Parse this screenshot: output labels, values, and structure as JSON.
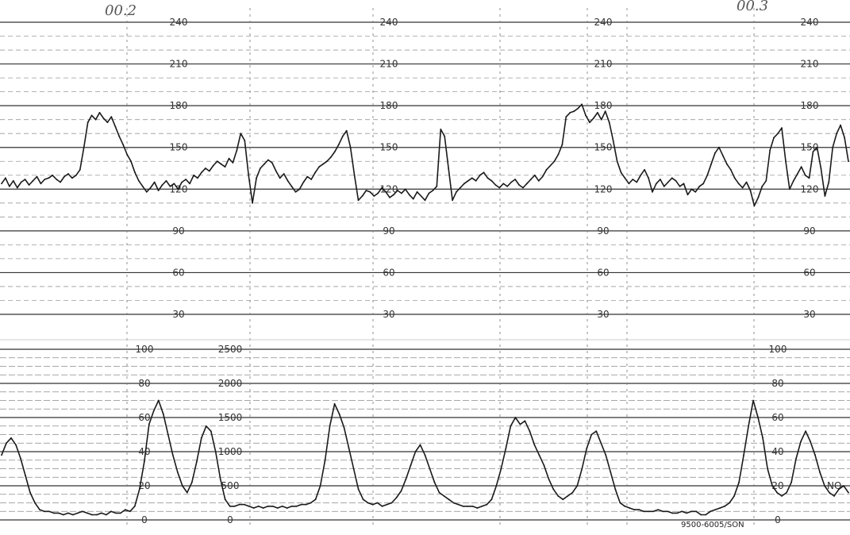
{
  "chart_data": [
    {
      "type": "line",
      "title": "",
      "xlabel": "",
      "ylabel": "",
      "ylim": [
        30,
        240
      ],
      "grid": true,
      "ticks": [
        "240",
        "210",
        "180",
        "150",
        "120",
        "90",
        "60",
        "30"
      ],
      "tick_values": [
        240,
        210,
        180,
        150,
        120,
        90,
        60,
        30
      ],
      "annotations": [
        "00.2",
        "00.3"
      ],
      "series": [
        {
          "values": [
            124,
            128,
            122,
            126,
            121,
            125,
            127,
            123,
            126,
            129,
            124,
            127,
            128,
            130,
            127,
            125,
            129,
            131,
            128,
            130,
            134,
            150,
            168,
            173,
            170,
            175,
            171,
            168,
            172,
            165,
            158,
            152,
            145,
            140,
            132,
            126,
            122,
            118,
            121,
            125,
            119,
            123,
            126,
            122,
            124,
            120,
            125,
            127,
            124,
            130,
            128,
            132,
            135,
            133,
            137,
            140,
            138,
            136,
            142,
            139,
            148,
            160,
            155,
            130,
            110,
            128,
            135,
            138,
            141,
            139,
            133,
            128,
            131,
            126,
            122,
            118,
            120,
            125,
            129,
            127,
            132,
            136,
            138,
            140,
            143,
            147,
            152,
            158,
            162,
            150,
            130,
            112,
            115,
            119,
            118,
            115,
            117,
            121,
            118,
            114,
            116,
            119,
            117,
            120,
            116,
            113,
            118,
            115,
            112,
            117,
            119,
            122,
            163,
            158,
            135,
            112,
            118,
            121,
            124,
            126,
            128,
            126,
            130,
            132,
            128,
            126,
            123,
            121,
            124,
            122,
            125,
            127,
            123,
            121,
            124,
            127,
            130,
            126,
            129,
            134,
            137,
            140,
            145,
            152,
            172,
            175,
            176,
            178,
            181,
            173,
            168,
            171,
            175,
            170,
            176,
            168,
            155,
            140,
            132,
            128,
            124,
            127,
            125,
            130,
            134,
            128,
            118,
            124,
            127,
            122,
            125,
            128,
            126,
            122,
            124,
            116,
            120,
            118,
            122,
            124,
            130,
            138,
            146,
            150,
            144,
            138,
            134,
            128,
            124,
            121,
            125,
            119,
            108,
            114,
            122,
            126,
            148,
            157,
            160,
            164,
            140,
            120,
            126,
            131,
            136,
            130,
            128,
            147,
            150,
            135,
            115,
            125,
            150,
            160,
            166,
            157,
            140
          ]
        }
      ]
    },
    {
      "type": "line",
      "title": "",
      "xlabel": "",
      "ylabel": "",
      "ylim": [
        0,
        100
      ],
      "grid": true,
      "ticks": [
        "100",
        "80",
        "60",
        "40",
        "20",
        "0"
      ],
      "tick_values": [
        100,
        80,
        60,
        40,
        20,
        0
      ],
      "secondary_ticks": [
        "2500",
        "2000",
        "1500",
        "1000",
        "500",
        "0"
      ],
      "secondary_tick_values": [
        2500,
        2000,
        1500,
        1000,
        500,
        0
      ],
      "series": [
        {
          "values": [
            38,
            45,
            48,
            44,
            36,
            26,
            16,
            10,
            6,
            5,
            5,
            4,
            4,
            3,
            4,
            3,
            4,
            5,
            4,
            3,
            3,
            4,
            3,
            5,
            4,
            4,
            6,
            5,
            8,
            18,
            34,
            56,
            64,
            70,
            62,
            50,
            38,
            28,
            20,
            16,
            22,
            34,
            48,
            55,
            52,
            40,
            24,
            12,
            8,
            8,
            9,
            9,
            8,
            7,
            8,
            7,
            8,
            8,
            7,
            8,
            7,
            8,
            8,
            9,
            9,
            10,
            12,
            20,
            35,
            55,
            68,
            62,
            54,
            42,
            30,
            18,
            12,
            10,
            9,
            10,
            8,
            9,
            10,
            13,
            17,
            24,
            32,
            40,
            44,
            38,
            30,
            22,
            16,
            14,
            12,
            10,
            9,
            8,
            8,
            8,
            7,
            8,
            9,
            12,
            20,
            30,
            42,
            55,
            60,
            56,
            58,
            52,
            44,
            38,
            32,
            24,
            18,
            14,
            12,
            14,
            16,
            20,
            30,
            42,
            50,
            52,
            45,
            38,
            28,
            18,
            10,
            8,
            7,
            6,
            6,
            5,
            5,
            5,
            6,
            5,
            5,
            4,
            4,
            5,
            4,
            5,
            5,
            3,
            3,
            5,
            6,
            7,
            8,
            10,
            14,
            22,
            38,
            55,
            70,
            60,
            48,
            30,
            20,
            16,
            14,
            16,
            22,
            36,
            46,
            52,
            46,
            38,
            28,
            20,
            16,
            14,
            18,
            20,
            16
          ]
        }
      ]
    }
  ],
  "chart_meta": {
    "code_label": "9500-6005/SON",
    "end_label": "NO"
  }
}
